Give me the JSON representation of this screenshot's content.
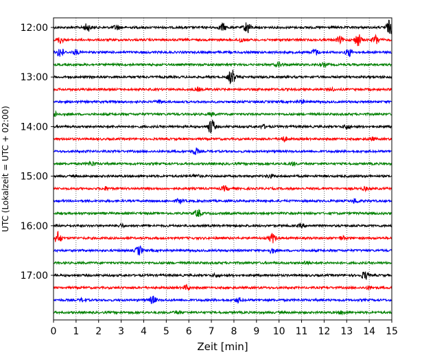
{
  "chart_data": {
    "type": "line",
    "title": "",
    "xlabel": "Zeit  [min]",
    "ylabel": "UTC (Lokalzeit = UTC + 02:00)",
    "xlim": [
      0,
      15
    ],
    "x_ticks": [
      0,
      1,
      2,
      3,
      4,
      5,
      6,
      7,
      8,
      9,
      10,
      11,
      12,
      13,
      14,
      15
    ],
    "y_tick_labels": [
      "12:00",
      "13:00",
      "14:00",
      "15:00",
      "16:00",
      "17:00"
    ],
    "grid": "vertical dotted lines at each minute",
    "colors": [
      "#000000",
      "#ff0000",
      "#0000ff",
      "#008000"
    ],
    "trace_interval_minutes": 15,
    "traces": [
      {
        "time": "12:00",
        "color": "#000000",
        "events": [
          [
            1.5,
            0.5
          ],
          [
            2.8,
            0.3
          ],
          [
            7.5,
            0.5
          ],
          [
            8.6,
            0.8
          ],
          [
            14.9,
            0.9
          ]
        ]
      },
      {
        "time": "12:15",
        "color": "#ff0000",
        "events": [
          [
            0.3,
            0.4
          ],
          [
            8.3,
            0.3
          ],
          [
            12.7,
            0.4
          ],
          [
            13.5,
            0.8
          ],
          [
            14.3,
            0.6
          ]
        ]
      },
      {
        "time": "12:30",
        "color": "#0000ff",
        "events": [
          [
            0.3,
            0.7
          ],
          [
            1.0,
            0.3
          ],
          [
            11.6,
            0.4
          ],
          [
            13.1,
            0.5
          ]
        ]
      },
      {
        "time": "12:45",
        "color": "#008000",
        "events": [
          [
            10.0,
            0.3
          ],
          [
            12.0,
            0.2
          ]
        ]
      },
      {
        "time": "13:00",
        "color": "#000000",
        "events": [
          [
            7.9,
            1.0
          ]
        ]
      },
      {
        "time": "13:15",
        "color": "#ff0000",
        "events": [
          [
            6.4,
            0.2
          ],
          [
            12.3,
            0.2
          ]
        ]
      },
      {
        "time": "13:30",
        "color": "#0000ff",
        "events": [
          [
            4.7,
            0.2
          ],
          [
            11.0,
            0.2
          ]
        ]
      },
      {
        "time": "13:45",
        "color": "#008000",
        "events": [
          [
            0.1,
            0.3
          ],
          [
            7.0,
            0.2
          ]
        ]
      },
      {
        "time": "14:00",
        "color": "#000000",
        "events": [
          [
            7.0,
            1.0
          ],
          [
            9.3,
            0.2
          ],
          [
            13.0,
            0.3
          ]
        ]
      },
      {
        "time": "14:15",
        "color": "#ff0000",
        "events": [
          [
            10.2,
            0.3
          ],
          [
            14.1,
            0.2
          ]
        ]
      },
      {
        "time": "14:30",
        "color": "#0000ff",
        "events": [
          [
            6.3,
            0.4
          ]
        ]
      },
      {
        "time": "14:45",
        "color": "#008000",
        "events": [
          [
            1.7,
            0.3
          ],
          [
            10.6,
            0.2
          ]
        ]
      },
      {
        "time": "15:00",
        "color": "#000000",
        "events": [
          [
            6.3,
            0.2
          ],
          [
            9.6,
            0.2
          ]
        ]
      },
      {
        "time": "15:15",
        "color": "#ff0000",
        "events": [
          [
            2.3,
            0.2
          ],
          [
            7.6,
            0.3
          ],
          [
            13.8,
            0.2
          ]
        ]
      },
      {
        "time": "15:30",
        "color": "#0000ff",
        "events": [
          [
            5.6,
            0.3
          ],
          [
            13.4,
            0.3
          ]
        ]
      },
      {
        "time": "15:45",
        "color": "#008000",
        "events": [
          [
            6.4,
            0.5
          ]
        ]
      },
      {
        "time": "16:00",
        "color": "#000000",
        "events": [
          [
            3.0,
            0.2
          ],
          [
            11.0,
            0.2
          ]
        ]
      },
      {
        "time": "16:15",
        "color": "#ff0000",
        "events": [
          [
            0.2,
            0.8
          ],
          [
            9.7,
            0.6
          ],
          [
            12.8,
            0.2
          ]
        ]
      },
      {
        "time": "16:30",
        "color": "#0000ff",
        "events": [
          [
            3.8,
            0.6
          ],
          [
            9.7,
            0.3
          ]
        ]
      },
      {
        "time": "16:45",
        "color": "#008000",
        "events": [
          [
            11.2,
            0.2
          ]
        ]
      },
      {
        "time": "17:00",
        "color": "#000000",
        "events": [
          [
            7.2,
            0.2
          ],
          [
            13.8,
            0.5
          ]
        ]
      },
      {
        "time": "17:15",
        "color": "#ff0000",
        "events": [
          [
            5.9,
            0.3
          ],
          [
            14.0,
            0.2
          ]
        ]
      },
      {
        "time": "17:30",
        "color": "#0000ff",
        "events": [
          [
            1.3,
            0.2
          ],
          [
            4.4,
            0.5
          ],
          [
            8.2,
            0.3
          ]
        ]
      },
      {
        "time": "17:45",
        "color": "#008000",
        "events": [
          [
            5.5,
            0.2
          ],
          [
            12.8,
            0.2
          ]
        ]
      }
    ]
  }
}
